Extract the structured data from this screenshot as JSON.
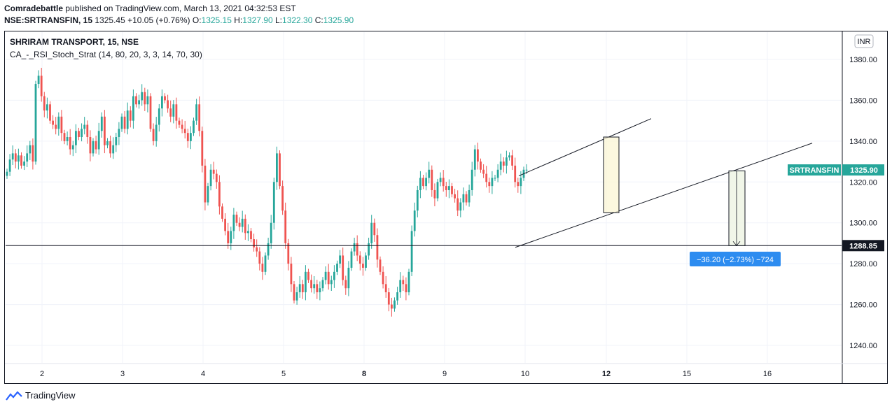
{
  "header": {
    "publisher": "Comradebattle",
    "published_text": "published on TradingView.com, March 13, 2021 04:32:53 EST",
    "symbol": "NSE:SRTRANSFIN, 15",
    "last": "1325.45",
    "change": "+10.05 (+0.76%)",
    "o_label": "O:",
    "o": "1325.15",
    "h_label": "H:",
    "h": "1327.90",
    "l_label": "L:",
    "l": "1322.30",
    "c_label": "C:",
    "c": "1325.90"
  },
  "legend": {
    "title": "SHRIRAM TRANSPORT, 15, NSE",
    "indicator": "CA_-_RSI_Stoch_Strat (14, 80, 20, 3, 3, 14, 70, 30)"
  },
  "currency_badge": "INR",
  "price_tag": {
    "label": "SRTRANSFIN",
    "value": "1325.90",
    "color": "#26a69a"
  },
  "level_tag": {
    "value": "1288.85"
  },
  "measure": {
    "text": "−36.20 (−2.73%) −724",
    "color": "#2d8cf0"
  },
  "footer": {
    "brand": "TradingView"
  },
  "colors": {
    "up": "#26a69a",
    "down": "#ef5350"
  },
  "chart_data": {
    "type": "candlestick",
    "y_range": [
      1230,
      1388
    ],
    "y_ticks": [
      1240,
      1260,
      1280,
      1300,
      1320,
      1340,
      1360,
      1380
    ],
    "y_tick_labels": [
      "1240.00",
      "1260.00",
      "1280.00",
      "1300.00",
      "1320.00",
      "1340.00",
      "1360.00",
      "1380.00"
    ],
    "x_labels": [
      "2",
      "3",
      "4",
      "5",
      "8",
      "9",
      "10",
      "12",
      "15",
      "16"
    ],
    "x_label_bold": [
      "8",
      "12"
    ],
    "horizontal_level": 1288.85,
    "closes": [
      1325,
      1331,
      1334,
      1330,
      1333,
      1328,
      1330,
      1334,
      1338,
      1330,
      1368,
      1372,
      1362,
      1355,
      1358,
      1350,
      1348,
      1346,
      1352,
      1344,
      1340,
      1342,
      1336,
      1338,
      1345,
      1342,
      1346,
      1348,
      1342,
      1334,
      1340,
      1336,
      1345,
      1352,
      1338,
      1340,
      1334,
      1338,
      1342,
      1346,
      1352,
      1346,
      1355,
      1350,
      1362,
      1358,
      1360,
      1364,
      1358,
      1362,
      1346,
      1340,
      1348,
      1356,
      1362,
      1360,
      1356,
      1352,
      1358,
      1350,
      1348,
      1346,
      1344,
      1340,
      1344,
      1350,
      1358,
      1345,
      1328,
      1310,
      1318,
      1326,
      1324,
      1320,
      1308,
      1302,
      1296,
      1290,
      1296,
      1304,
      1300,
      1298,
      1302,
      1295,
      1296,
      1292,
      1288,
      1286,
      1280,
      1276,
      1284,
      1290,
      1300,
      1320,
      1334,
      1318,
      1306,
      1290,
      1280,
      1270,
      1262,
      1266,
      1270,
      1266,
      1276,
      1272,
      1268,
      1270,
      1266,
      1268,
      1272,
      1276,
      1270,
      1272,
      1276,
      1280,
      1284,
      1272,
      1268,
      1278,
      1286,
      1290,
      1284,
      1280,
      1278,
      1284,
      1290,
      1300,
      1294,
      1282,
      1276,
      1270,
      1266,
      1260,
      1258,
      1262,
      1266,
      1272,
      1270,
      1266,
      1276,
      1296,
      1306,
      1316,
      1322,
      1318,
      1322,
      1326,
      1316,
      1312,
      1320,
      1322,
      1318,
      1316,
      1318,
      1314,
      1312,
      1306,
      1310,
      1314,
      1310,
      1316,
      1326,
      1336,
      1330,
      1326,
      1324,
      1320,
      1318,
      1322,
      1322,
      1326,
      1330,
      1328,
      1332,
      1333,
      1328,
      1320,
      1318,
      1322,
      1326,
      1326
    ],
    "channel_upper": [
      [
        1323,
        1328
      ],
      [
        1351,
        1349
      ]
    ],
    "channel_lower": [
      [
        1288,
        1299
      ],
      [
        1339,
        1343
      ]
    ],
    "highlight_box": {
      "x": [
        1334,
        1338
      ],
      "y": [
        1305,
        1342
      ]
    },
    "measure_range": [
      1288.85,
      1325.45
    ]
  }
}
